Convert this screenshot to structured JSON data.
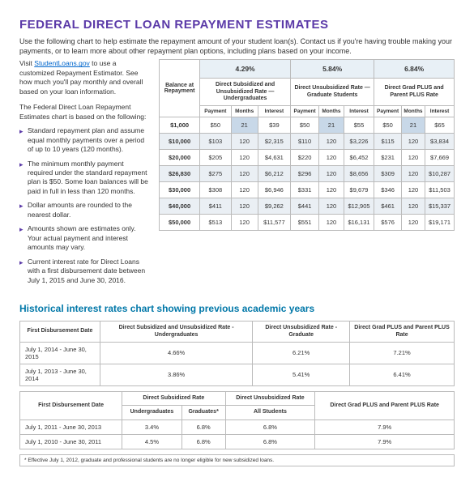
{
  "title": "FEDERAL DIRECT LOAN REPAYMENT ESTIMATES",
  "intro": "Use the following chart to help estimate the repayment amount of your student loan(s). Contact us if you're having trouble making your payments, or to learn more about other repayment plan options, including plans based on your income.",
  "visit_prefix": "Visit ",
  "visit_link": "StudentLoans.gov",
  "visit_suffix": " to use a customized Repayment Estimator. See how much you'll pay monthly and overall based on your loan information.",
  "basis": "The Federal Direct Loan Repayment Estimates chart is based on the following:",
  "bullets": [
    "Standard repayment plan and assume equal monthly payments over a period of up to 10 years (120 months).",
    "The minimum monthly payment required under the standard repayment plan is $50. Some loan balances will be paid in full in less than 120 months.",
    "Dollar amounts are rounded to the nearest dollar.",
    "Amounts shown are estimates only. Your actual payment and interest amounts may vary.",
    "Current interest rate for Direct Loans with a first disbursement date between July 1, 2015 and June 30, 2016."
  ],
  "est": {
    "balance_hdr": "Balance at Repayment",
    "rates": [
      "4.29%",
      "5.84%",
      "6.84%"
    ],
    "rate_labels": [
      "Direct Subsidized and Unsubsidized Rate — Undergraduates",
      "Direct Unsubsidized Rate — Graduate Students",
      "Direct Grad PLUS and Parent PLUS Rate"
    ],
    "sub_hdrs": [
      "Payment",
      "Months",
      "Interest"
    ],
    "rows": [
      {
        "bal": "$1,000",
        "c": [
          [
            "$50",
            "21",
            "$39"
          ],
          [
            "$50",
            "21",
            "$55"
          ],
          [
            "$50",
            "21",
            "$65"
          ]
        ],
        "hl": true
      },
      {
        "bal": "$10,000",
        "c": [
          [
            "$103",
            "120",
            "$2,315"
          ],
          [
            "$110",
            "120",
            "$3,226"
          ],
          [
            "$115",
            "120",
            "$3,834"
          ]
        ]
      },
      {
        "bal": "$20,000",
        "c": [
          [
            "$205",
            "120",
            "$4,631"
          ],
          [
            "$220",
            "120",
            "$6,452"
          ],
          [
            "$231",
            "120",
            "$7,669"
          ]
        ]
      },
      {
        "bal": "$26,830",
        "c": [
          [
            "$275",
            "120",
            "$6,212"
          ],
          [
            "$296",
            "120",
            "$8,656"
          ],
          [
            "$309",
            "120",
            "$10,287"
          ]
        ]
      },
      {
        "bal": "$30,000",
        "c": [
          [
            "$308",
            "120",
            "$6,946"
          ],
          [
            "$331",
            "120",
            "$9,679"
          ],
          [
            "$346",
            "120",
            "$11,503"
          ]
        ]
      },
      {
        "bal": "$40,000",
        "c": [
          [
            "$411",
            "120",
            "$9,262"
          ],
          [
            "$441",
            "120",
            "$12,905"
          ],
          [
            "$461",
            "120",
            "$15,337"
          ]
        ]
      },
      {
        "bal": "$50,000",
        "c": [
          [
            "$513",
            "120",
            "$11,577"
          ],
          [
            "$551",
            "120",
            "$16,131"
          ],
          [
            "$576",
            "120",
            "$19,171"
          ]
        ]
      }
    ]
  },
  "hist_title": "Historical interest rates chart showing previous academic years",
  "hist1": {
    "headers": [
      "First Disbursement Date",
      "Direct Subsidized and Unsubsidized Rate - Undergraduates",
      "Direct Unsubsidized Rate - Graduate",
      "Direct Grad PLUS and Parent PLUS Rate"
    ],
    "rows": [
      [
        "July 1, 2014 - June 30, 2015",
        "4.66%",
        "6.21%",
        "7.21%"
      ],
      [
        "July 1, 2013 - June 30, 2014",
        "3.86%",
        "5.41%",
        "6.41%"
      ]
    ]
  },
  "hist2": {
    "headers": [
      "First Disbursement Date",
      "Direct Subsidized Rate",
      "Direct Unsubsidized Rate",
      "Direct Grad PLUS and Parent PLUS Rate"
    ],
    "sub_headers": [
      "Undergraduates",
      "Graduates*",
      "All Students"
    ],
    "rows": [
      [
        "July 1, 2011 - June 30, 2013",
        "3.4%",
        "6.8%",
        "6.8%",
        "7.9%"
      ],
      [
        "July 1, 2010 - June 30, 2011",
        "4.5%",
        "6.8%",
        "6.8%",
        "7.9%"
      ]
    ]
  },
  "hist_note": "* Effective July 1, 2012, graduate and professional students are no longer eligible for new subsidized loans."
}
